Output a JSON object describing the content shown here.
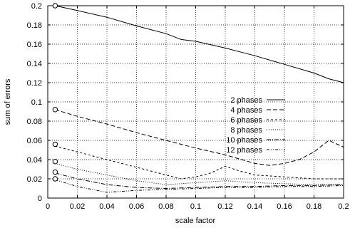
{
  "chart_data": {
    "type": "line",
    "title": "",
    "xlabel": "scale factor",
    "ylabel": "sum of errors",
    "xlim": [
      0,
      0.2
    ],
    "ylim": [
      0,
      0.2
    ],
    "xticks": [
      "0",
      "0.02",
      "0.04",
      "0.06",
      "0.08",
      "0.1",
      "0.12",
      "0.14",
      "0.16",
      "0.18",
      "0.2"
    ],
    "yticks": [
      "0",
      "0.02",
      "0.04",
      "0.06",
      "0.08",
      "0.1",
      "0.12",
      "0.14",
      "0.16",
      "0.18",
      "0.2"
    ],
    "grid": true,
    "legend_position": "center-right",
    "series": [
      {
        "name": "2 phases",
        "dash": "solid",
        "x": [
          0.005,
          0.02,
          0.04,
          0.06,
          0.08,
          0.09,
          0.1,
          0.12,
          0.13,
          0.14,
          0.16,
          0.18,
          0.19,
          0.2
        ],
        "y": [
          0.2,
          0.195,
          0.188,
          0.179,
          0.171,
          0.165,
          0.163,
          0.156,
          0.152,
          0.148,
          0.139,
          0.13,
          0.124,
          0.12
        ]
      },
      {
        "name": "4 phases",
        "dash": "long-dash",
        "x": [
          0.005,
          0.02,
          0.04,
          0.06,
          0.08,
          0.1,
          0.12,
          0.14,
          0.15,
          0.16,
          0.17,
          0.18,
          0.19,
          0.2
        ],
        "y": [
          0.092,
          0.085,
          0.077,
          0.068,
          0.06,
          0.052,
          0.045,
          0.036,
          0.034,
          0.036,
          0.04,
          0.048,
          0.06,
          0.053
        ]
      },
      {
        "name": "6 phases",
        "dash": "short-dash",
        "x": [
          0.005,
          0.02,
          0.04,
          0.06,
          0.08,
          0.09,
          0.1,
          0.11,
          0.12,
          0.13,
          0.14,
          0.16,
          0.18,
          0.2
        ],
        "y": [
          0.054,
          0.048,
          0.04,
          0.032,
          0.024,
          0.02,
          0.022,
          0.026,
          0.033,
          0.028,
          0.024,
          0.022,
          0.02,
          0.02
        ]
      },
      {
        "name": "8 phases",
        "dash": "dotted",
        "x": [
          0.005,
          0.02,
          0.04,
          0.06,
          0.08,
          0.1,
          0.12,
          0.14,
          0.16,
          0.18,
          0.2
        ],
        "y": [
          0.036,
          0.03,
          0.024,
          0.018,
          0.014,
          0.016,
          0.018,
          0.016,
          0.015,
          0.014,
          0.014
        ]
      },
      {
        "name": "10 phases",
        "dash": "dash-dot",
        "x": [
          0.005,
          0.02,
          0.04,
          0.06,
          0.08,
          0.1,
          0.12,
          0.14,
          0.16,
          0.18,
          0.2
        ],
        "y": [
          0.026,
          0.02,
          0.014,
          0.011,
          0.01,
          0.011,
          0.012,
          0.012,
          0.013,
          0.013,
          0.014
        ]
      },
      {
        "name": "12 phases",
        "dash": "dash-dot-dot",
        "x": [
          0.005,
          0.02,
          0.04,
          0.06,
          0.08,
          0.1,
          0.12,
          0.14,
          0.16,
          0.18,
          0.2
        ],
        "y": [
          0.019,
          0.012,
          0.006,
          0.008,
          0.009,
          0.01,
          0.011,
          0.011,
          0.012,
          0.012,
          0.013
        ]
      }
    ],
    "start_markers": [
      {
        "x": 0.005,
        "y": 0.2
      },
      {
        "x": 0.005,
        "y": 0.092
      },
      {
        "x": 0.005,
        "y": 0.056
      },
      {
        "x": 0.005,
        "y": 0.038
      },
      {
        "x": 0.005,
        "y": 0.027
      },
      {
        "x": 0.005,
        "y": 0.02
      }
    ]
  }
}
